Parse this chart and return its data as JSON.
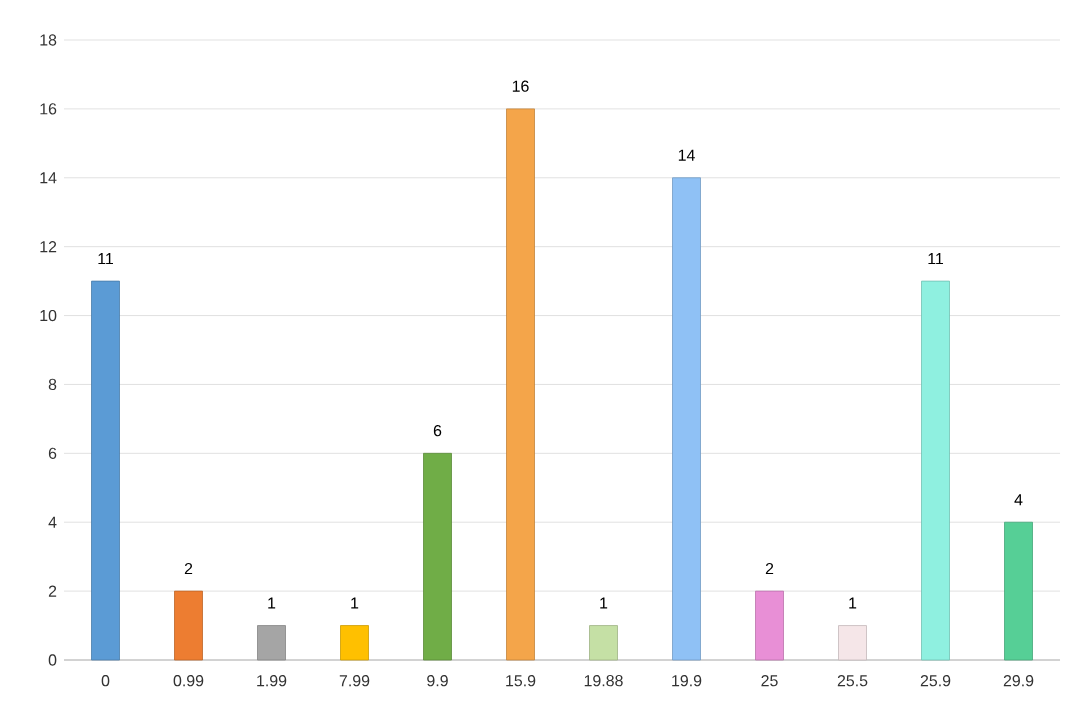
{
  "chart_data": {
    "type": "bar",
    "categories": [
      "0",
      "0.99",
      "1.99",
      "7.99",
      "9.9",
      "15.9",
      "19.88",
      "19.9",
      "25",
      "25.5",
      "25.9",
      "29.9"
    ],
    "values": [
      11,
      2,
      1,
      1,
      6,
      16,
      1,
      14,
      2,
      1,
      11,
      4
    ],
    "colors": [
      "#5b9bd5",
      "#ed7d31",
      "#a5a5a5",
      "#ffc000",
      "#70ad47",
      "#f4a54a",
      "#c5e0a5",
      "#8fc1f5",
      "#e88fd6",
      "#f5e6e8",
      "#8ff0e0",
      "#56cf96"
    ],
    "ylim": [
      0,
      18
    ],
    "yticks": [
      0,
      2,
      4,
      6,
      8,
      10,
      12,
      14,
      16,
      18
    ],
    "grid": "y",
    "data_labels": true
  }
}
